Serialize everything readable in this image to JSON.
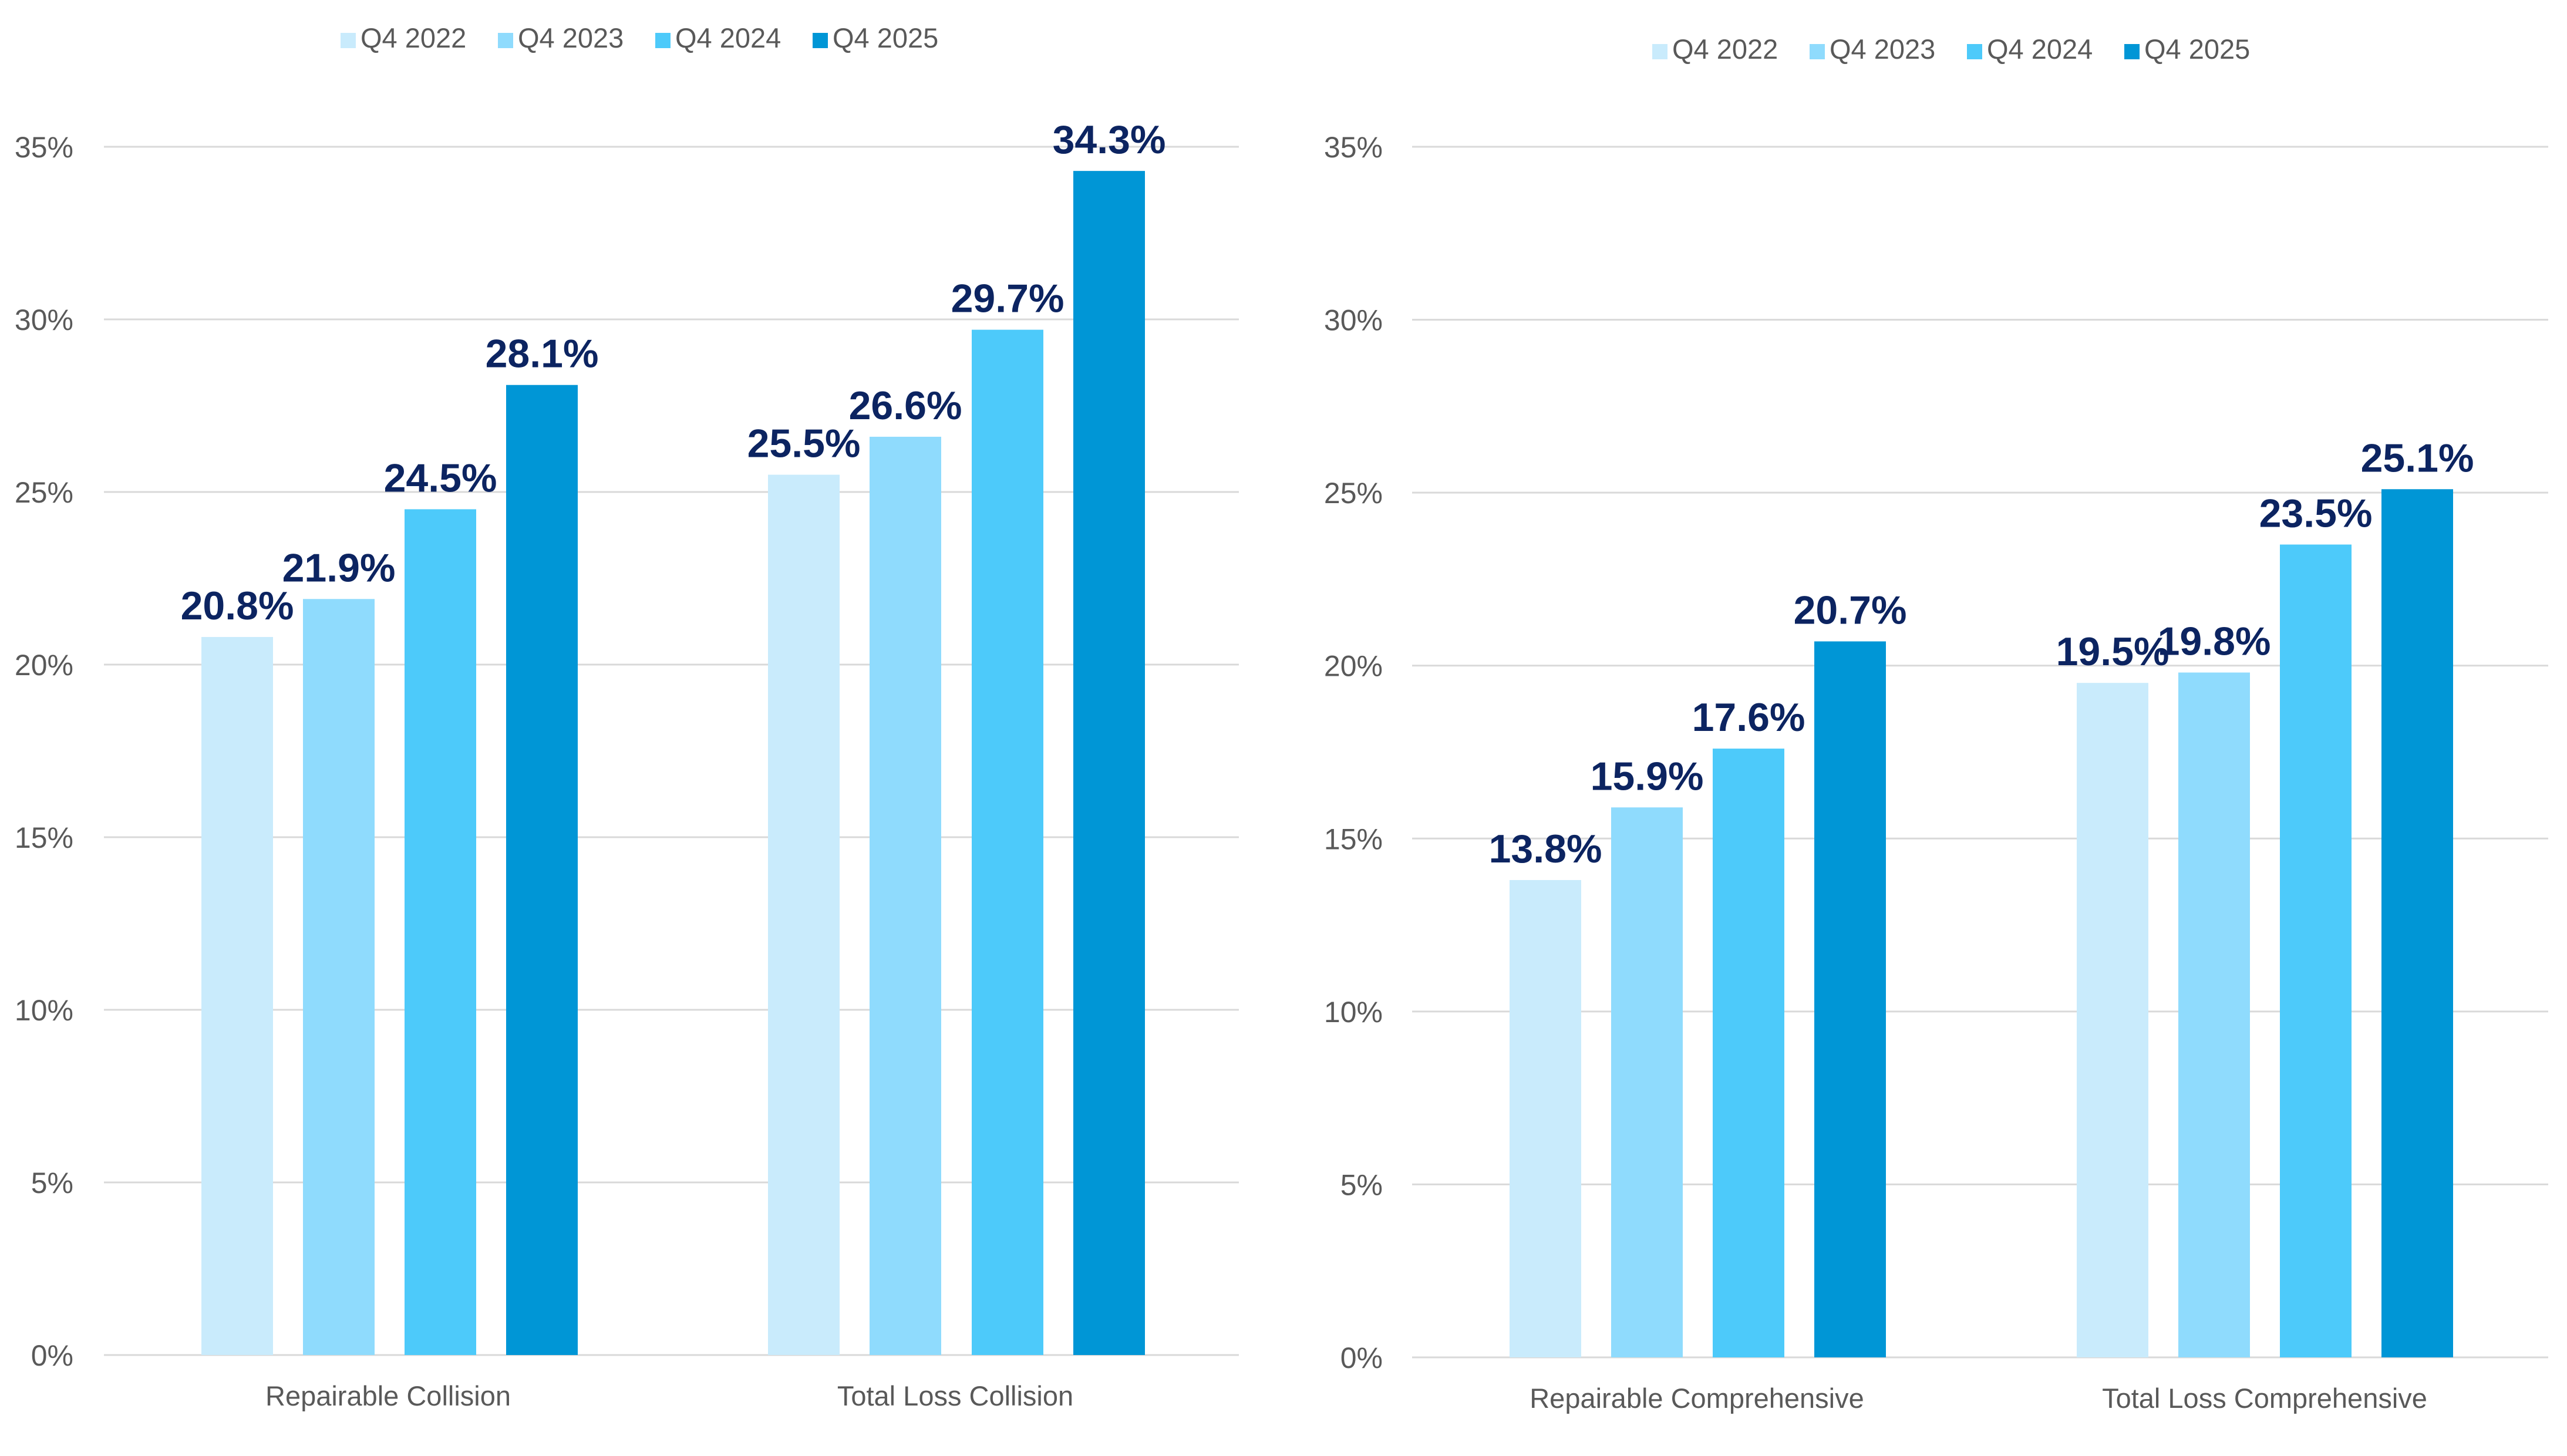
{
  "chart_data": [
    {
      "type": "bar",
      "title": "",
      "xlabel": "",
      "ylabel": "",
      "ylim": [
        0,
        35
      ],
      "yticks": [
        "0%",
        "5%",
        "10%",
        "15%",
        "20%",
        "25%",
        "30%",
        "35%"
      ],
      "grid": true,
      "legend_position": "top",
      "categories": [
        "Repairable Collision",
        "Total Loss Collision"
      ],
      "series": [
        {
          "name": "Q4 2022",
          "color": "#c9ebfc",
          "values": [
            20.8,
            25.5
          ],
          "labels": [
            "20.8%",
            "25.5%"
          ]
        },
        {
          "name": "Q4 2023",
          "color": "#8fdbfd",
          "values": [
            21.9,
            26.6
          ],
          "labels": [
            "21.9%",
            "26.6%"
          ]
        },
        {
          "name": "Q4 2024",
          "color": "#4dcafa",
          "values": [
            24.5,
            29.7
          ],
          "labels": [
            "24.5%",
            "29.7%"
          ]
        },
        {
          "name": "Q4 2025",
          "color": "#0096d6",
          "values": [
            28.1,
            34.3
          ],
          "labels": [
            "28.1%",
            "34.3%"
          ]
        }
      ]
    },
    {
      "type": "bar",
      "title": "",
      "xlabel": "",
      "ylabel": "",
      "ylim": [
        0,
        35
      ],
      "yticks": [
        "0%",
        "5%",
        "10%",
        "15%",
        "20%",
        "25%",
        "30%",
        "35%"
      ],
      "grid": true,
      "legend_position": "top",
      "categories": [
        "Repairable Comprehensive",
        "Total Loss Comprehensive"
      ],
      "series": [
        {
          "name": "Q4 2022",
          "color": "#c9ebfc",
          "values": [
            13.8,
            19.5
          ],
          "labels": [
            "13.8%",
            "19.5%"
          ]
        },
        {
          "name": "Q4 2023",
          "color": "#8fdbfd",
          "values": [
            15.9,
            19.8
          ],
          "labels": [
            "15.9%",
            "19.8%"
          ]
        },
        {
          "name": "Q4 2024",
          "color": "#4dcafa",
          "values": [
            17.6,
            23.5
          ],
          "labels": [
            "17.6%",
            "23.5%"
          ]
        },
        {
          "name": "Q4 2025",
          "color": "#0096d6",
          "values": [
            20.7,
            25.1
          ],
          "labels": [
            "20.7%",
            "25.1%"
          ]
        }
      ]
    }
  ]
}
